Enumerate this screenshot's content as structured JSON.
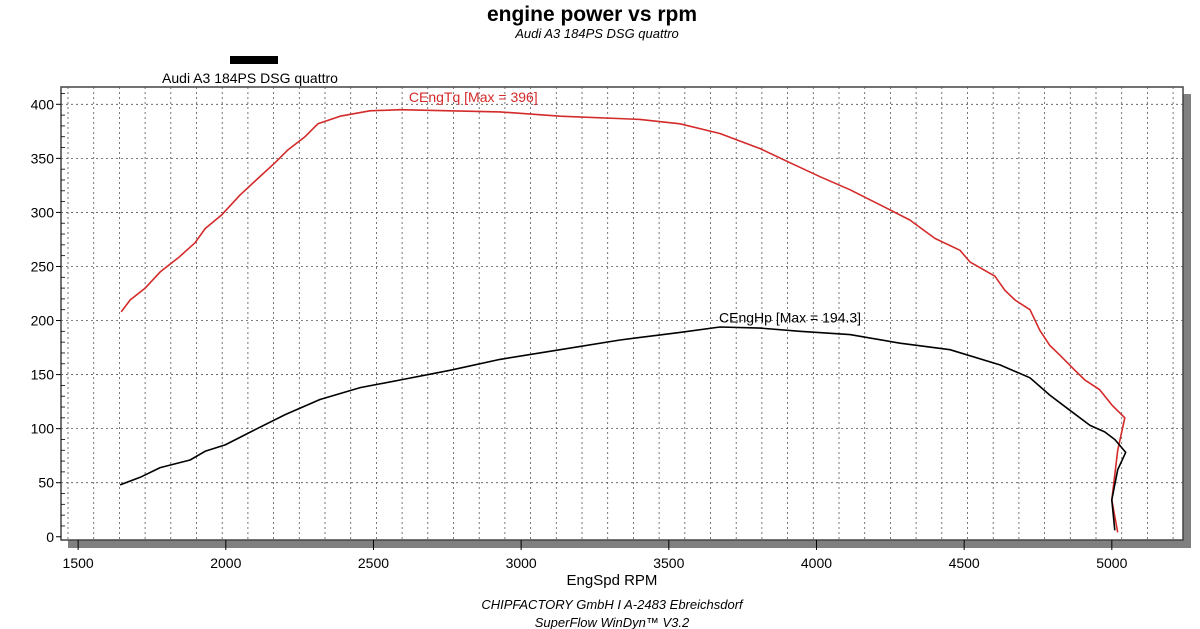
{
  "chart_data": {
    "type": "line",
    "title": "engine power vs rpm",
    "subtitle": "Audi A3 184PS DSG quattro",
    "legend": {
      "label": "Audi A3 184PS DSG quattro",
      "color": "#000000",
      "placement": "top-left"
    },
    "xlabel": "EngSpd RPM",
    "ylabel": "",
    "xlim": [
      1442,
      5241
    ],
    "ylim": [
      -3,
      416
    ],
    "xticks": [
      1500,
      2000,
      2500,
      3000,
      3500,
      4000,
      4500,
      5000
    ],
    "yticks": [
      0,
      50,
      100,
      150,
      200,
      250,
      300,
      350,
      400
    ],
    "grid": true,
    "series": [
      {
        "name": "CEngTq",
        "label": "CEngTq [Max = 396]",
        "color": "#d42a2a",
        "label_at": [
          2620,
          402
        ],
        "points": [
          [
            1646,
            208
          ],
          [
            1676,
            219
          ],
          [
            1727,
            230
          ],
          [
            1778,
            245
          ],
          [
            1839,
            258
          ],
          [
            1896,
            272
          ],
          [
            1930,
            285
          ],
          [
            1987,
            298
          ],
          [
            2048,
            316
          ],
          [
            2103,
            330
          ],
          [
            2167,
            346
          ],
          [
            2211,
            358
          ],
          [
            2268,
            370
          ],
          [
            2312,
            382
          ],
          [
            2387,
            389
          ],
          [
            2488,
            394
          ],
          [
            2590,
            395
          ],
          [
            2759,
            394
          ],
          [
            2928,
            393
          ],
          [
            3132,
            389
          ],
          [
            3402,
            386
          ],
          [
            3538,
            382
          ],
          [
            3673,
            373
          ],
          [
            3809,
            359
          ],
          [
            3910,
            346
          ],
          [
            4012,
            333
          ],
          [
            4113,
            321
          ],
          [
            4215,
            307
          ],
          [
            4316,
            293
          ],
          [
            4401,
            276
          ],
          [
            4486,
            265
          ],
          [
            4520,
            254
          ],
          [
            4604,
            241
          ],
          [
            4638,
            228
          ],
          [
            4672,
            219
          ],
          [
            4723,
            210
          ],
          [
            4756,
            191
          ],
          [
            4790,
            177
          ],
          [
            4824,
            168
          ],
          [
            4875,
            154
          ],
          [
            4909,
            145
          ],
          [
            4959,
            136
          ],
          [
            5000,
            122
          ],
          [
            5044,
            110
          ],
          [
            5020,
            80
          ],
          [
            5000,
            34
          ],
          [
            5020,
            4
          ]
        ]
      },
      {
        "name": "CEngHp",
        "label": "CEngHp [Max = 194.3]",
        "color": "#000000",
        "label_at": [
          3670,
          198
        ],
        "points": [
          [
            1642,
            48
          ],
          [
            1710,
            55
          ],
          [
            1778,
            64
          ],
          [
            1879,
            71
          ],
          [
            1930,
            79
          ],
          [
            1998,
            85
          ],
          [
            2099,
            99
          ],
          [
            2201,
            113
          ],
          [
            2319,
            127
          ],
          [
            2455,
            138
          ],
          [
            2590,
            145
          ],
          [
            2759,
            154
          ],
          [
            2928,
            164
          ],
          [
            3132,
            173
          ],
          [
            3335,
            182
          ],
          [
            3538,
            189
          ],
          [
            3673,
            194
          ],
          [
            3809,
            193
          ],
          [
            3944,
            190
          ],
          [
            4113,
            187
          ],
          [
            4283,
            179
          ],
          [
            4452,
            173
          ],
          [
            4621,
            159
          ],
          [
            4723,
            147
          ],
          [
            4790,
            131
          ],
          [
            4858,
            117
          ],
          [
            4926,
            103
          ],
          [
            4976,
            97
          ],
          [
            5010,
            90
          ],
          [
            5047,
            78
          ],
          [
            5020,
            62
          ],
          [
            5000,
            34
          ],
          [
            5010,
            6
          ]
        ]
      }
    ]
  },
  "footer": {
    "line1": "CHIPFACTORY GmbH I A-2483 Ebreichsdorf",
    "line2": "SuperFlow WinDyn™ V3.2"
  }
}
